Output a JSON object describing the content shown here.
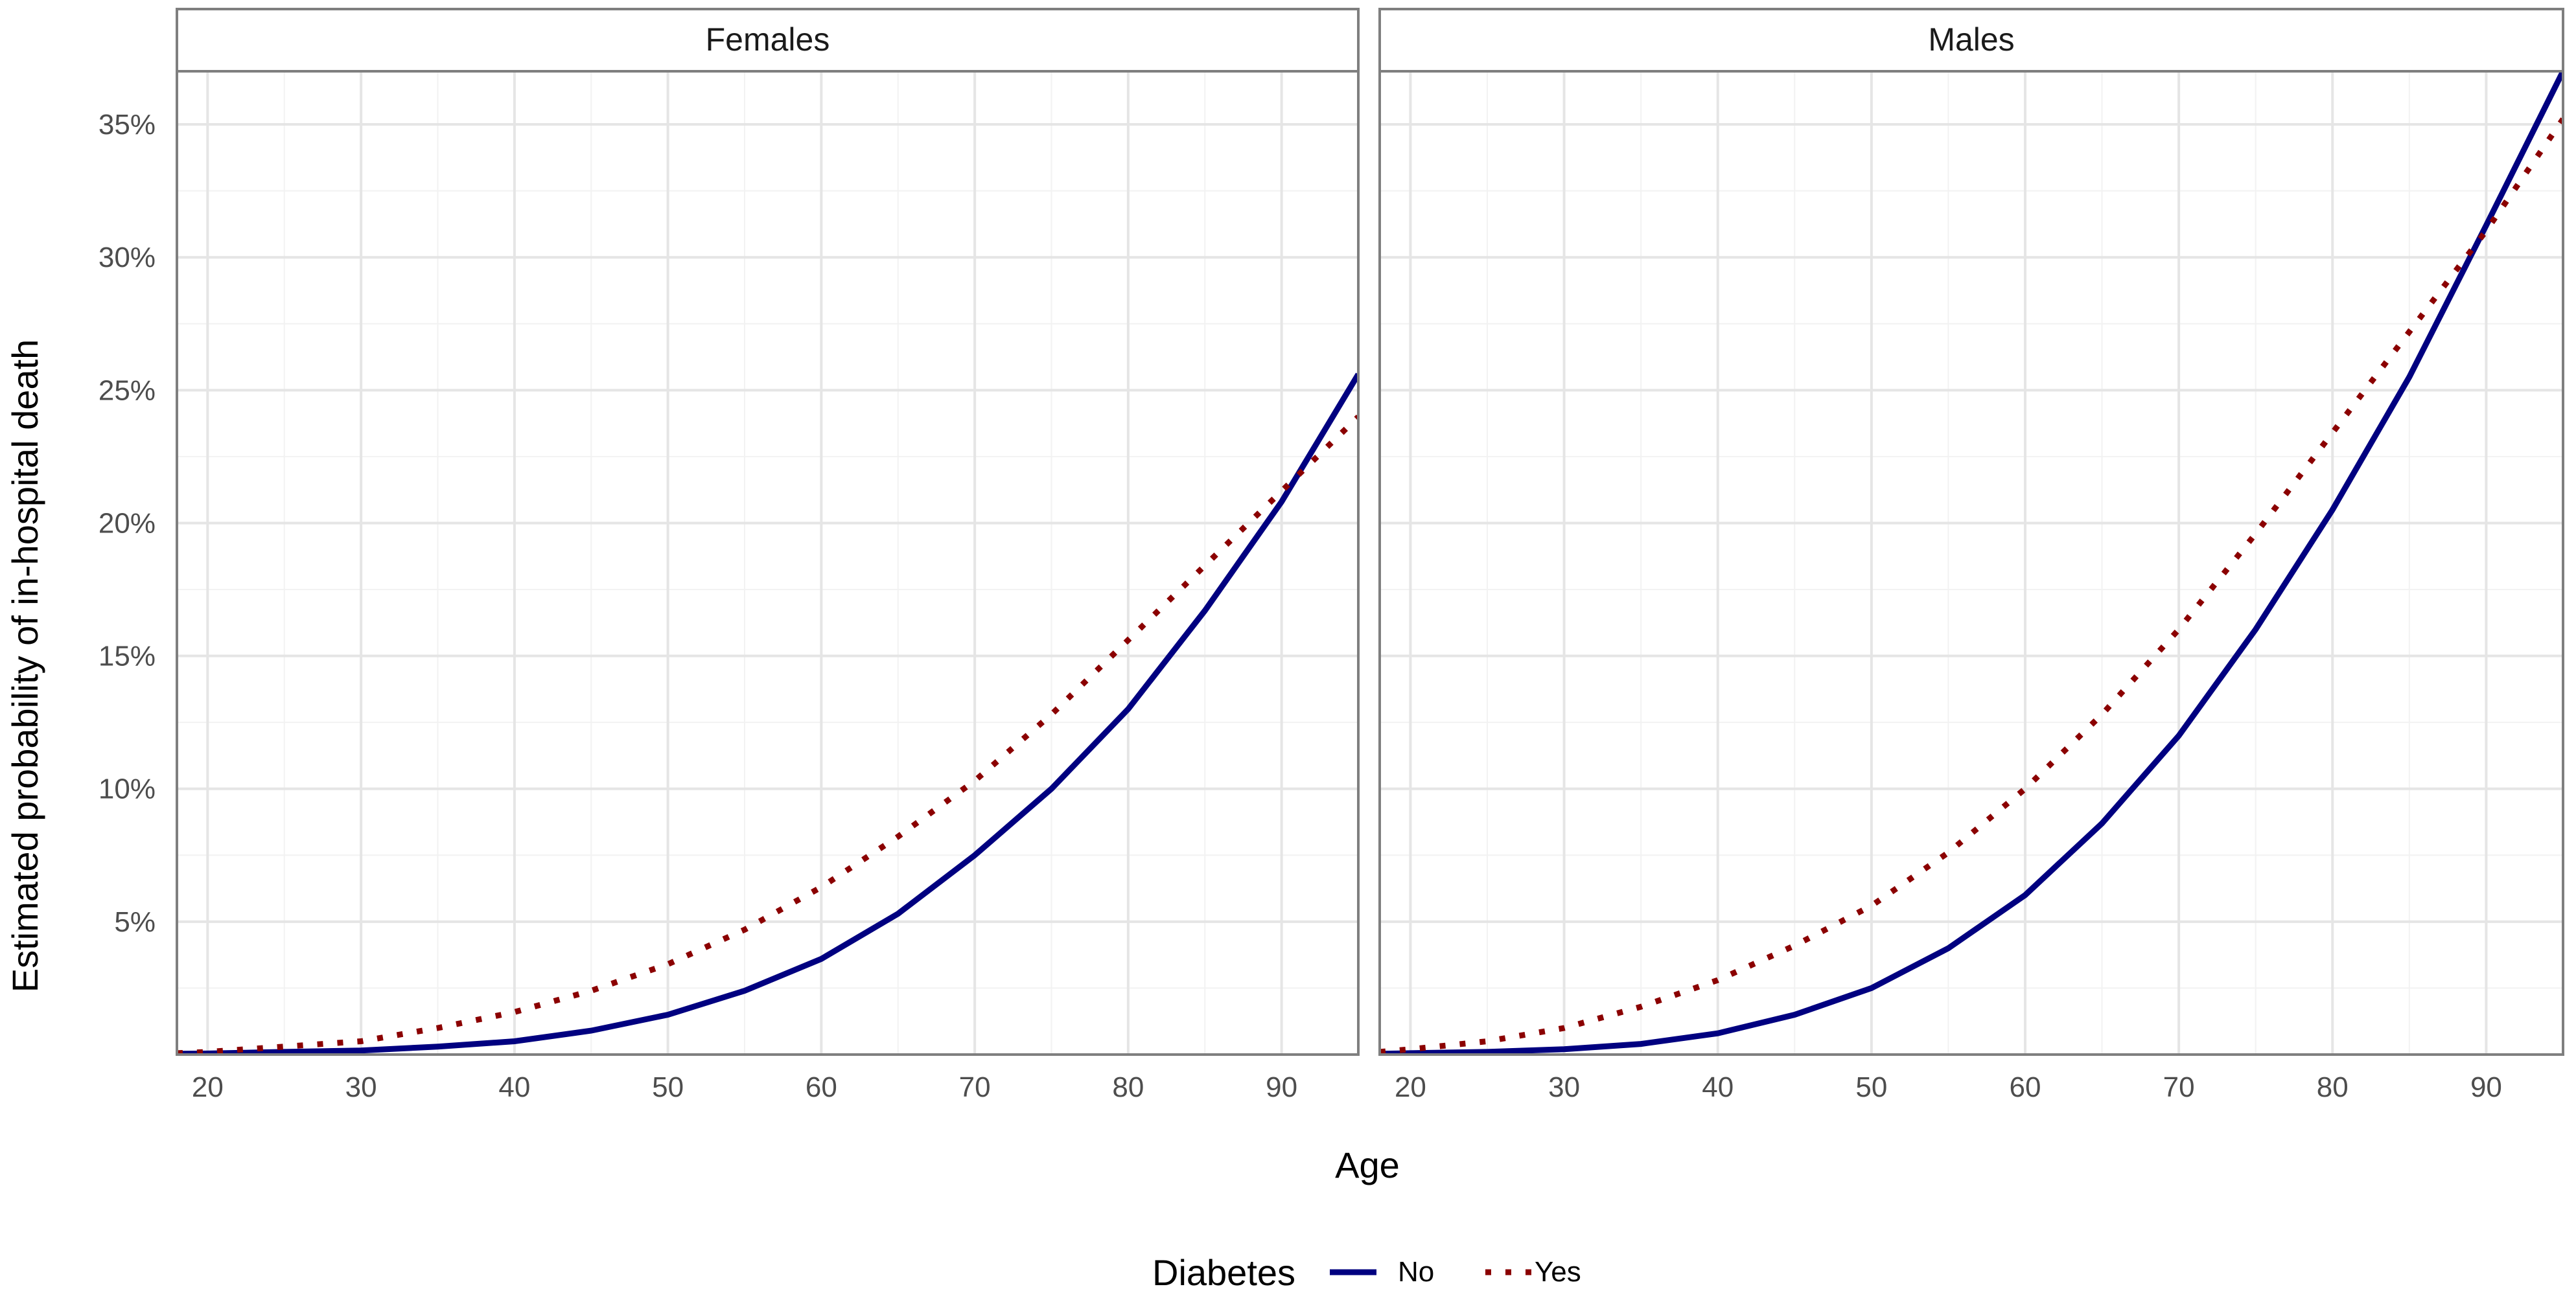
{
  "chart_data": {
    "type": "line",
    "ylabel": "Estimated probability of in-hospital death",
    "xlabel": "Age",
    "xlim": [
      18,
      95
    ],
    "ylim": [
      0,
      0.37
    ],
    "x_ticks": [
      20,
      30,
      40,
      50,
      60,
      70,
      80,
      90
    ],
    "y_ticks": [
      0.05,
      0.1,
      0.15,
      0.2,
      0.25,
      0.3,
      0.35
    ],
    "y_tick_labels": [
      "5%",
      "10%",
      "15%",
      "20%",
      "25%",
      "30%",
      "35%"
    ],
    "grid": true,
    "legend": {
      "title": "Diabetes",
      "position": "bottom",
      "entries": [
        {
          "label": "No",
          "color": "#000080",
          "style": "solid"
        },
        {
          "label": "Yes",
          "color": "#8b0000",
          "style": "dotted"
        }
      ]
    },
    "x": [
      18,
      20,
      25,
      30,
      35,
      40,
      45,
      50,
      55,
      60,
      65,
      70,
      75,
      80,
      85,
      90,
      95
    ],
    "panels": [
      {
        "strip": "Females",
        "series": [
          {
            "name": "No",
            "values": [
              0.0003,
              0.0004,
              0.001,
              0.0015,
              0.003,
              0.005,
              0.009,
              0.015,
              0.024,
              0.036,
              0.053,
              0.075,
              0.1,
              0.13,
              0.167,
              0.208,
              0.256
            ]
          },
          {
            "name": "Yes",
            "values": [
              0.0005,
              0.001,
              0.003,
              0.005,
              0.01,
              0.016,
              0.024,
              0.034,
              0.047,
              0.063,
              0.082,
              0.103,
              0.128,
              0.156,
              0.184,
              0.212,
              0.24
            ]
          }
        ]
      },
      {
        "strip": "Males",
        "series": [
          {
            "name": "No",
            "values": [
              0.0003,
              0.0005,
              0.001,
              0.002,
              0.004,
              0.008,
              0.015,
              0.025,
              0.04,
              0.06,
              0.087,
              0.12,
              0.16,
              0.205,
              0.255,
              0.312,
              0.37
            ]
          },
          {
            "name": "Yes",
            "values": [
              0.001,
              0.002,
              0.005,
              0.01,
              0.018,
              0.028,
              0.041,
              0.056,
              0.076,
              0.1,
              0.128,
              0.16,
              0.196,
              0.234,
              0.272,
              0.31,
              0.352
            ]
          }
        ]
      }
    ]
  }
}
